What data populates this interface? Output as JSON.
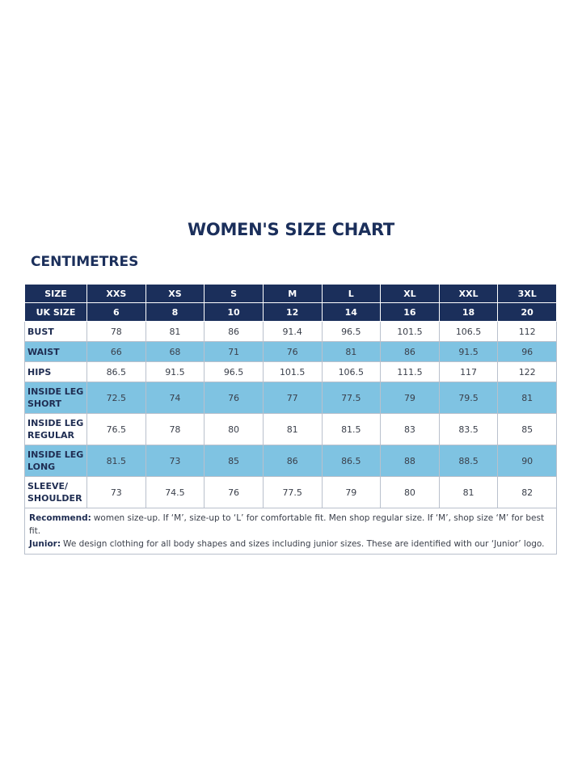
{
  "title": "WOMEN'S SIZE CHART",
  "subtitle": "CENTIMETRES",
  "table": {
    "header": {
      "label": "SIZE",
      "values": [
        "XXS",
        "XS",
        "S",
        "M",
        "L",
        "XL",
        "XXL",
        "3XL"
      ]
    },
    "uk": {
      "label": "UK SIZE",
      "values": [
        6,
        8,
        10,
        12,
        14,
        16,
        18,
        20
      ]
    },
    "rows": [
      {
        "label": "BUST",
        "values": [
          78,
          81,
          86,
          91.4,
          96.5,
          101.5,
          106.5,
          112
        ]
      },
      {
        "label": "WAIST",
        "values": [
          66,
          68,
          71,
          76,
          81,
          86,
          91.5,
          96
        ]
      },
      {
        "label": "HIPS",
        "values": [
          86.5,
          91.5,
          96.5,
          101.5,
          106.5,
          111.5,
          117,
          122
        ]
      },
      {
        "label": "INSIDE LEG\nSHORT",
        "values": [
          72.5,
          74,
          76,
          77,
          77.5,
          79,
          79.5,
          81
        ]
      },
      {
        "label": "INSIDE LEG\nREGULAR",
        "values": [
          76.5,
          78,
          80,
          81,
          81.5,
          83,
          83.5,
          85
        ]
      },
      {
        "label": "INSIDE LEG\nLONG",
        "values": [
          81.5,
          73,
          85,
          86,
          86.5,
          88,
          88.5,
          90
        ]
      },
      {
        "label": "SLEEVE/\nSHOULDER",
        "values": [
          73,
          74.5,
          76,
          77.5,
          79,
          80,
          81,
          82
        ]
      }
    ],
    "notes": [
      {
        "label": "Recommend:",
        "text": "women size-up. If ‘M’, size-up to ‘L’ for comfortable fit. Men shop regular size. If ‘M’, shop size ‘M’ for best fit."
      },
      {
        "label": "Junior:",
        "text": "We design clothing for all body shapes and sizes including junior sizes. These are identified with our ‘Junior’ logo."
      }
    ]
  }
}
